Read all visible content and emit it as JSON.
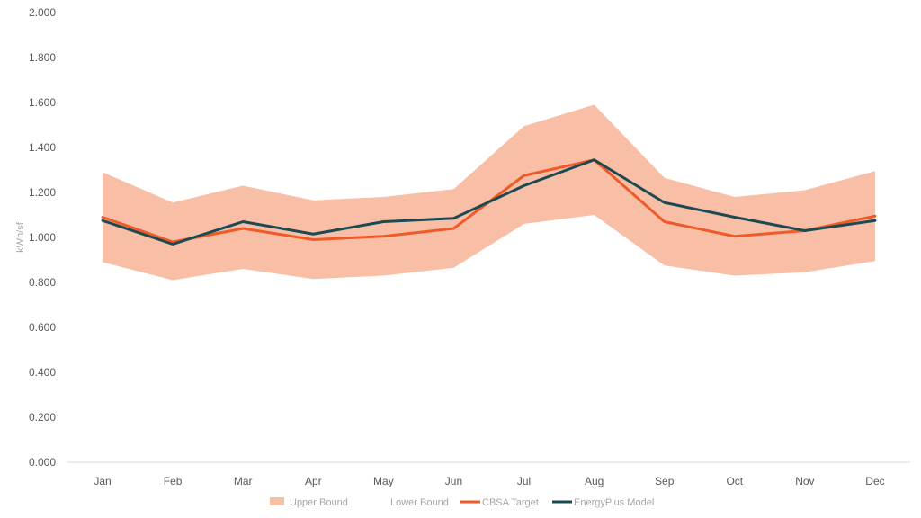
{
  "chart_data": {
    "type": "area",
    "title": "",
    "xlabel": "",
    "ylabel": "kWh/sf",
    "ylim": [
      0,
      2
    ],
    "y_ticks": [
      "0.000",
      "0.200",
      "0.400",
      "0.600",
      "0.800",
      "1.000",
      "1.200",
      "1.400",
      "1.600",
      "1.800",
      "2.000"
    ],
    "categories": [
      "Jan",
      "Feb",
      "Mar",
      "Apr",
      "May",
      "Jun",
      "Jul",
      "Aug",
      "Sep",
      "Oct",
      "Nov",
      "Dec"
    ],
    "grid": false,
    "legend_position": "bottom",
    "series": [
      {
        "name": "Upper Bound",
        "style": "band-top",
        "color": "#f8bfa6",
        "values": [
          1.29,
          1.155,
          1.23,
          1.165,
          1.18,
          1.215,
          1.495,
          1.59,
          1.265,
          1.18,
          1.21,
          1.295
        ]
      },
      {
        "name": "Lower Bound",
        "style": "band-bottom",
        "color": "#ffffff",
        "values": [
          0.89,
          0.81,
          0.86,
          0.815,
          0.83,
          0.865,
          1.06,
          1.1,
          0.875,
          0.83,
          0.845,
          0.895
        ]
      },
      {
        "name": "CBSA Target",
        "style": "line",
        "color": "#f05a28",
        "values": [
          1.09,
          0.98,
          1.04,
          0.99,
          1.005,
          1.04,
          1.275,
          1.345,
          1.07,
          1.005,
          1.03,
          1.095
        ]
      },
      {
        "name": "EnergyPlus Model",
        "style": "line",
        "color": "#1b4a52",
        "values": [
          1.075,
          0.97,
          1.07,
          1.015,
          1.07,
          1.085,
          1.23,
          1.345,
          1.155,
          1.09,
          1.03,
          1.075
        ]
      }
    ]
  }
}
